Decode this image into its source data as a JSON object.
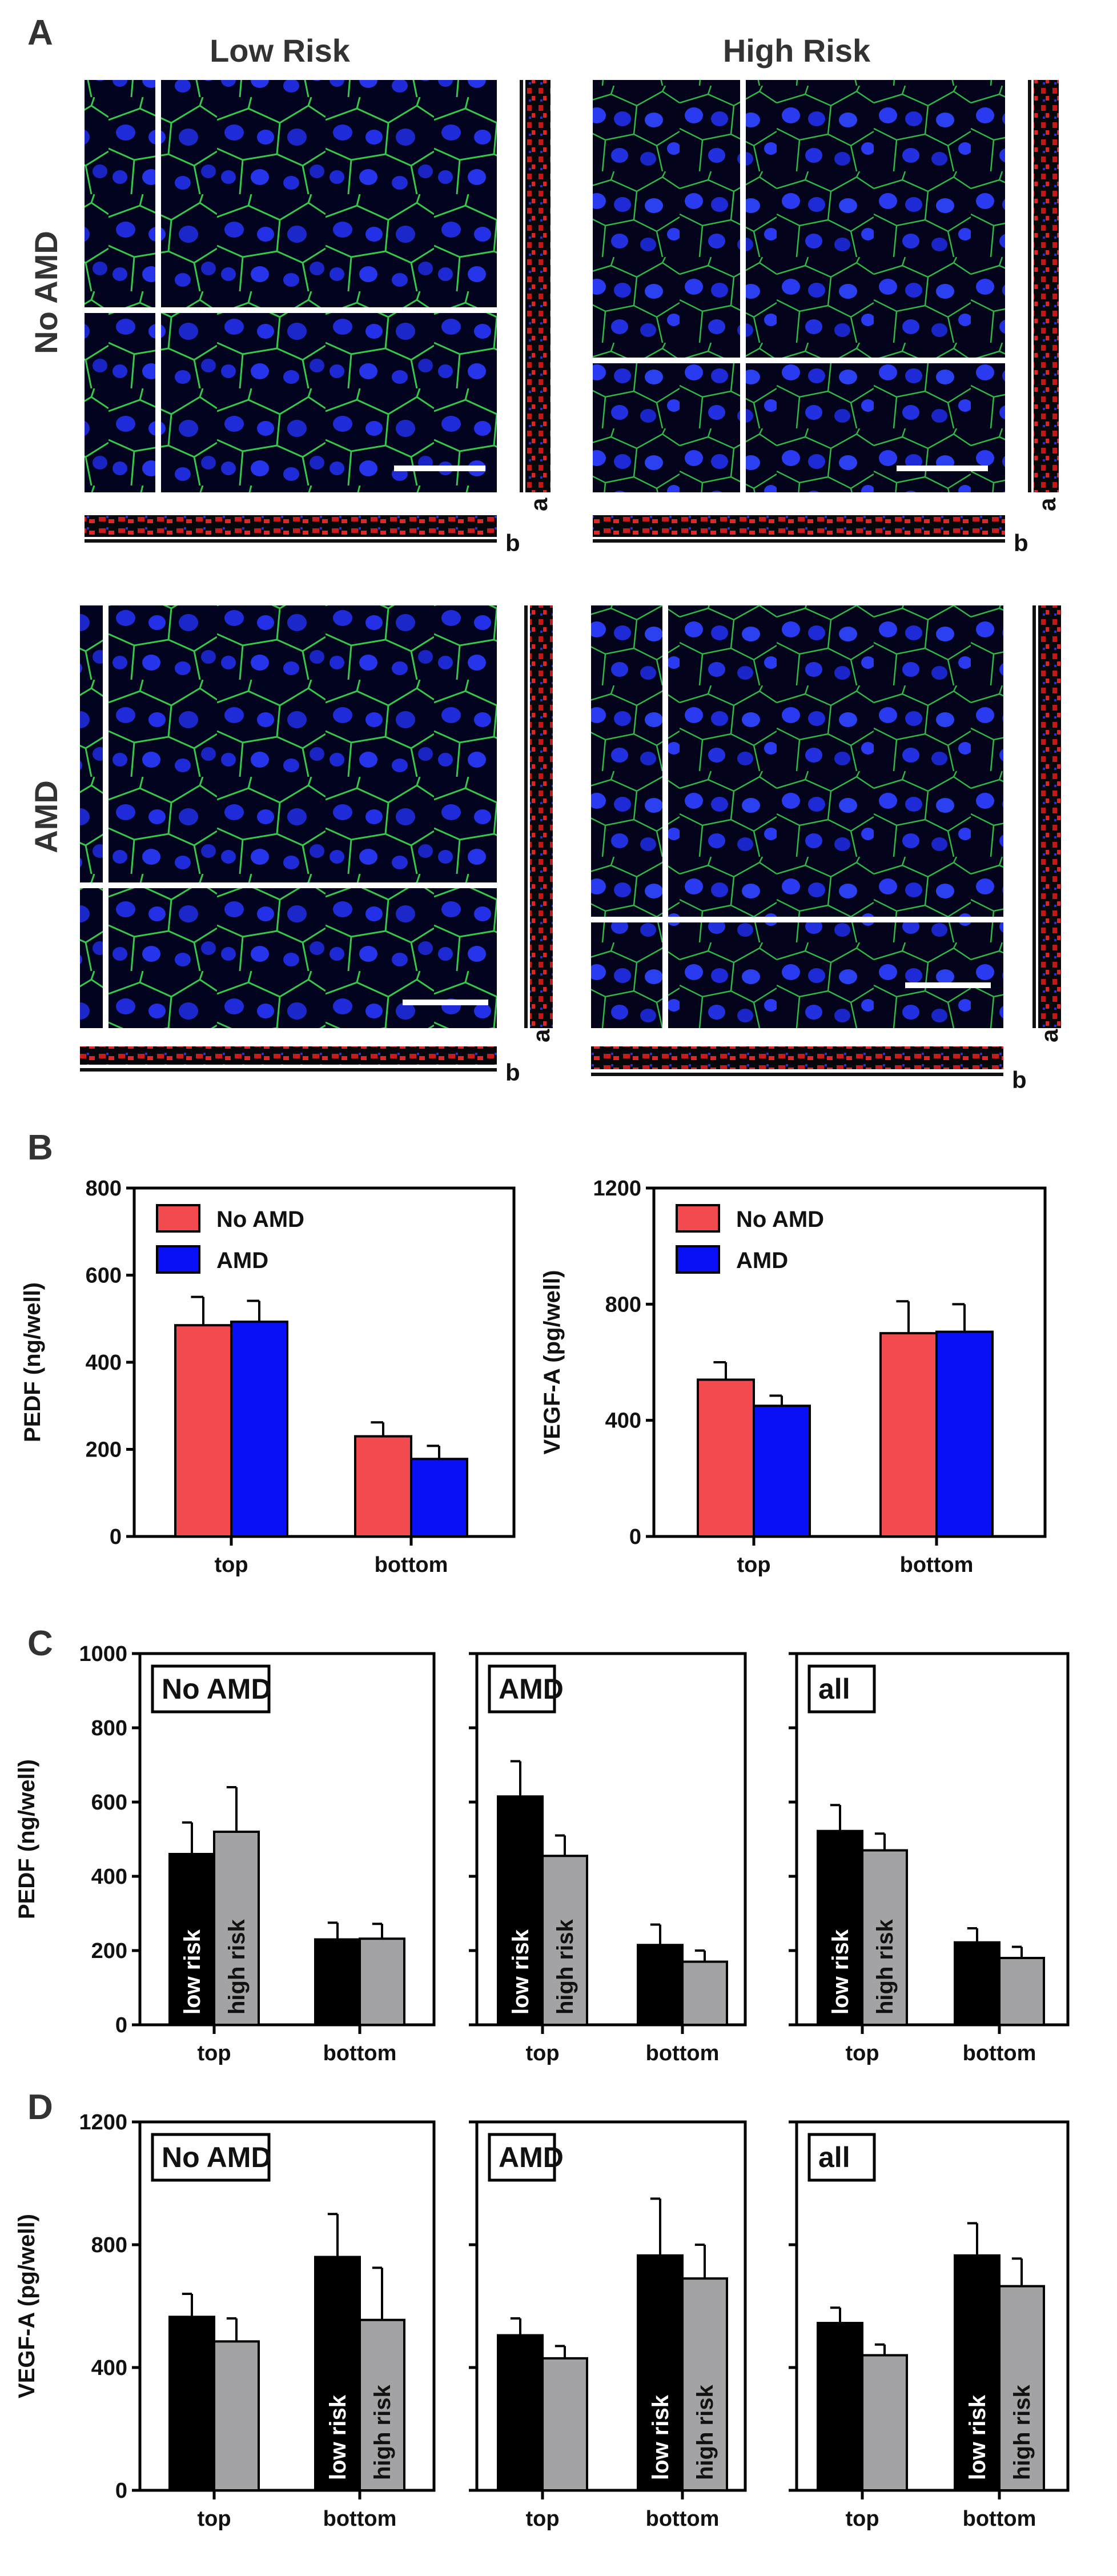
{
  "figure": {
    "panel_labels": {
      "A": "A",
      "B": "B",
      "C": "C",
      "D": "D"
    },
    "panel_a": {
      "col_headers": [
        "Low Risk",
        "High Risk"
      ],
      "row_headers": [
        "No AMD",
        "AMD"
      ],
      "side_labels": {
        "a": "a",
        "b": "b"
      },
      "image_description_tags": [
        "confocal-micrograph-no-amd-low-risk",
        "confocal-micrograph-no-amd-high-risk",
        "confocal-micrograph-amd-low-risk",
        "confocal-micrograph-amd-high-risk"
      ]
    },
    "colors": {
      "no_amd": "#f24a4f",
      "amd": "#0a10f5",
      "low_risk": "#000000",
      "high_risk": "#a3a3a6"
    }
  },
  "chart_data": [
    {
      "id": "B_pedf",
      "type": "bar",
      "panel": "B",
      "categories": [
        "top",
        "bottom"
      ],
      "series": [
        {
          "name": "No AMD",
          "values": [
            485,
            230
          ],
          "errors": [
            65,
            32
          ]
        },
        {
          "name": "AMD",
          "values": [
            493,
            178
          ],
          "errors": [
            48,
            30
          ]
        }
      ],
      "ylabel": "PEDF (ng/well)",
      "ylim": [
        0,
        800
      ],
      "yticks": [
        0,
        200,
        400,
        600,
        800
      ],
      "legend": "top-left"
    },
    {
      "id": "B_vegf",
      "type": "bar",
      "panel": "B",
      "categories": [
        "top",
        "bottom"
      ],
      "series": [
        {
          "name": "No AMD",
          "values": [
            540,
            700
          ],
          "errors": [
            60,
            110
          ]
        },
        {
          "name": "AMD",
          "values": [
            450,
            705
          ],
          "errors": [
            35,
            95
          ]
        }
      ],
      "ylabel": "VEGF-A (pg/well)",
      "ylim": [
        0,
        1200
      ],
      "yticks": [
        0,
        400,
        800,
        1200
      ],
      "legend": "top-left"
    },
    {
      "id": "C_noamd",
      "type": "bar",
      "panel": "C",
      "box_label": "No AMD",
      "categories": [
        "top",
        "bottom"
      ],
      "series": [
        {
          "name": "low risk",
          "values": [
            460,
            230
          ],
          "errors": [
            85,
            45
          ]
        },
        {
          "name": "high risk",
          "values": [
            520,
            232
          ],
          "errors": [
            120,
            40
          ]
        }
      ],
      "ylabel": "PEDF (ng/well)",
      "ylim": [
        0,
        1000
      ],
      "yticks": [
        0,
        200,
        400,
        600,
        800,
        1000
      ],
      "bar_text_group": "top"
    },
    {
      "id": "C_amd",
      "type": "bar",
      "panel": "C",
      "box_label": "AMD",
      "categories": [
        "top",
        "bottom"
      ],
      "series": [
        {
          "name": "low risk",
          "values": [
            615,
            215
          ],
          "errors": [
            95,
            55
          ]
        },
        {
          "name": "high risk",
          "values": [
            455,
            170
          ],
          "errors": [
            55,
            30
          ]
        }
      ],
      "ylim": [
        0,
        1000
      ],
      "yticks": [
        0,
        200,
        400,
        600,
        800,
        1000
      ],
      "bar_text_group": "top"
    },
    {
      "id": "C_all",
      "type": "bar",
      "panel": "C",
      "box_label": "all",
      "categories": [
        "top",
        "bottom"
      ],
      "series": [
        {
          "name": "low risk",
          "values": [
            522,
            222
          ],
          "errors": [
            70,
            38
          ]
        },
        {
          "name": "high risk",
          "values": [
            470,
            180
          ],
          "errors": [
            45,
            30
          ]
        }
      ],
      "ylim": [
        0,
        1000
      ],
      "yticks": [
        0,
        200,
        400,
        600,
        800,
        1000
      ],
      "bar_text_group": "top"
    },
    {
      "id": "D_noamd",
      "type": "bar",
      "panel": "D",
      "box_label": "No AMD",
      "categories": [
        "top",
        "bottom"
      ],
      "series": [
        {
          "name": "low risk",
          "values": [
            565,
            760
          ],
          "errors": [
            75,
            140
          ]
        },
        {
          "name": "high risk",
          "values": [
            485,
            555
          ],
          "errors": [
            75,
            170
          ]
        }
      ],
      "ylabel": "VEGF-A (pg/well)",
      "ylim": [
        0,
        1200
      ],
      "yticks": [
        0,
        400,
        800,
        1200
      ],
      "bar_text_group": "bottom"
    },
    {
      "id": "D_amd",
      "type": "bar",
      "panel": "D",
      "box_label": "AMD",
      "categories": [
        "top",
        "bottom"
      ],
      "series": [
        {
          "name": "low risk",
          "values": [
            505,
            765
          ],
          "errors": [
            55,
            185
          ]
        },
        {
          "name": "high risk",
          "values": [
            430,
            690
          ],
          "errors": [
            40,
            110
          ]
        }
      ],
      "ylim": [
        0,
        1200
      ],
      "yticks": [
        0,
        400,
        800,
        1200
      ],
      "bar_text_group": "bottom"
    },
    {
      "id": "D_all",
      "type": "bar",
      "panel": "D",
      "box_label": "all",
      "categories": [
        "top",
        "bottom"
      ],
      "series": [
        {
          "name": "low risk",
          "values": [
            545,
            765
          ],
          "errors": [
            50,
            105
          ]
        },
        {
          "name": "high risk",
          "values": [
            440,
            665
          ],
          "errors": [
            35,
            90
          ]
        }
      ],
      "ylim": [
        0,
        1200
      ],
      "yticks": [
        0,
        400,
        800,
        1200
      ],
      "bar_text_group": "bottom"
    }
  ]
}
